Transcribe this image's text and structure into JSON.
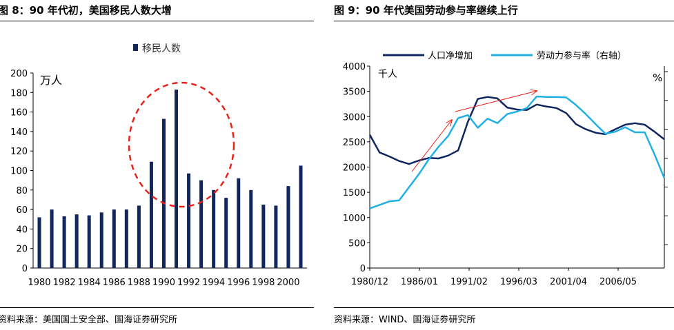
{
  "left": {
    "title": "图 8：90 年代初，美国移民人数大增",
    "source": "资料来源：美国国土安全部、国海证券研究所"
  },
  "right": {
    "title": "图 9：90 年代美国劳动参与率继续上行",
    "source": "资料来源：WIND、国海证券研究所"
  },
  "chart_data": [
    {
      "type": "bar",
      "title": "",
      "unit_label": "万人",
      "legend": [
        "移民人数"
      ],
      "legend_placement": "top",
      "ylim": [
        0,
        200
      ],
      "yticks": [
        0,
        20,
        40,
        60,
        80,
        100,
        120,
        140,
        160,
        180,
        200
      ],
      "categories": [
        "1980",
        "1981",
        "1982",
        "1983",
        "1984",
        "1985",
        "1986",
        "1987",
        "1988",
        "1989",
        "1990",
        "1991",
        "1992",
        "1993",
        "1994",
        "1995",
        "1996",
        "1997",
        "1998",
        "1999",
        "2000",
        "2001"
      ],
      "xtick_labels": [
        "1980",
        "1982",
        "1984",
        "1986",
        "1988",
        "1990",
        "1992",
        "1994",
        "1996",
        "1998",
        "2000"
      ],
      "series": [
        {
          "name": "移民人数",
          "color": "#0f2660",
          "values": [
            52,
            60,
            53,
            55,
            54,
            57,
            60,
            60,
            64,
            109,
            153,
            183,
            97,
            90,
            80,
            72,
            92,
            80,
            65,
            64,
            84,
            105
          ]
        }
      ],
      "annotation": "red dashed circle highlighting 1989-1992",
      "grid": false
    },
    {
      "type": "line",
      "title": "",
      "left_unit_label": "千人",
      "right_unit_label": "%",
      "legend_placement": "top",
      "ylim": [
        0,
        4000
      ],
      "yticks": [
        0,
        500,
        1000,
        1500,
        2000,
        2500,
        3000,
        3500,
        4000
      ],
      "xtick_labels": [
        "1980/12",
        "1986/01",
        "1991/02",
        "1996/03",
        "2001/04",
        "2006/05"
      ],
      "grid": false,
      "annotation": "red arrows indicating upward trend",
      "series": [
        {
          "name": "人口净增加",
          "color": "#0f2660",
          "axis": "left",
          "points": [
            [
              1980.9,
              2640
            ],
            [
              1981.9,
              2290
            ],
            [
              1982.9,
              2210
            ],
            [
              1983.9,
              2120
            ],
            [
              1984.9,
              2060
            ],
            [
              1985.9,
              2130
            ],
            [
              1986.9,
              2180
            ],
            [
              1987.9,
              2170
            ],
            [
              1988.9,
              2230
            ],
            [
              1989.9,
              2330
            ],
            [
              1990.9,
              2900
            ],
            [
              1991.9,
              3350
            ],
            [
              1992.9,
              3390
            ],
            [
              1993.9,
              3360
            ],
            [
              1994.9,
              3180
            ],
            [
              1995.9,
              3140
            ],
            [
              1996.9,
              3130
            ],
            [
              1997.9,
              3240
            ],
            [
              1998.9,
              3200
            ],
            [
              1999.9,
              3170
            ],
            [
              2000.9,
              3070
            ],
            [
              2001.9,
              2850
            ],
            [
              2002.9,
              2750
            ],
            [
              2003.9,
              2680
            ],
            [
              2004.9,
              2650
            ],
            [
              2005.9,
              2750
            ],
            [
              2006.9,
              2840
            ],
            [
              2007.9,
              2870
            ],
            [
              2008.9,
              2840
            ],
            [
              2009.9,
              2700
            ],
            [
              2010.9,
              2550
            ]
          ]
        },
        {
          "name": "劳动力参与率（右轴）",
          "color": "#1fb0e6",
          "axis": "right",
          "points": [
            [
              1980.9,
              1180
            ],
            [
              1981.9,
              1250
            ],
            [
              1982.9,
              1320
            ],
            [
              1983.9,
              1340
            ],
            [
              1984.9,
              1600
            ],
            [
              1985.9,
              1860
            ],
            [
              1986.9,
              2150
            ],
            [
              1987.9,
              2400
            ],
            [
              1988.9,
              2620
            ],
            [
              1989.9,
              2970
            ],
            [
              1990.9,
              3030
            ],
            [
              1991.9,
              2780
            ],
            [
              1992.9,
              2960
            ],
            [
              1993.9,
              2870
            ],
            [
              1994.9,
              3050
            ],
            [
              1995.9,
              3100
            ],
            [
              1996.9,
              3170
            ],
            [
              1997.9,
              3400
            ],
            [
              1998.9,
              3390
            ],
            [
              1999.9,
              3390
            ],
            [
              2000.9,
              3380
            ],
            [
              2001.9,
              3230
            ],
            [
              2002.9,
              3050
            ],
            [
              2003.9,
              2850
            ],
            [
              2004.9,
              2660
            ],
            [
              2005.9,
              2700
            ],
            [
              2006.9,
              2790
            ],
            [
              2007.9,
              2690
            ],
            [
              2008.9,
              2690
            ],
            [
              2009.9,
              2250
            ],
            [
              2010.9,
              1780
            ]
          ]
        }
      ]
    }
  ]
}
